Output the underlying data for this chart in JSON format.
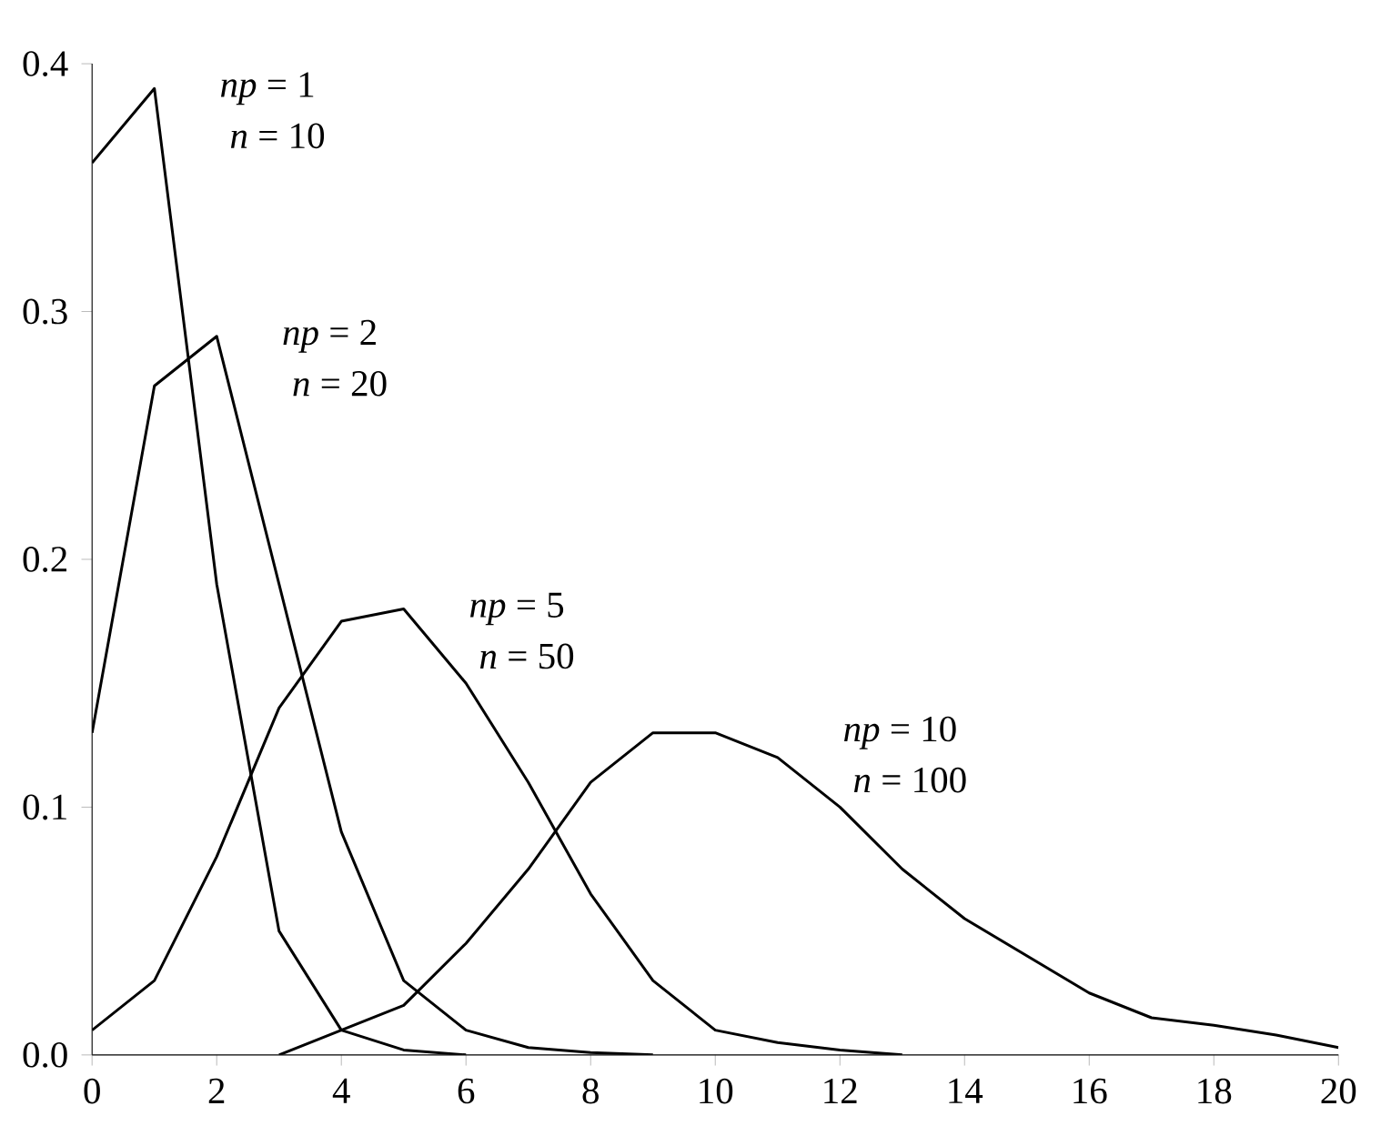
{
  "chart_data": {
    "type": "line",
    "xlim": [
      0,
      20
    ],
    "ylim": [
      0,
      0.4
    ],
    "xticks": [
      0,
      2,
      4,
      6,
      8,
      10,
      12,
      14,
      16,
      18,
      20
    ],
    "yticks": [
      {
        "value": 0,
        "label": "0.0"
      },
      0.1,
      0.2,
      0.3,
      0.4
    ],
    "grid": false,
    "marker": "none",
    "line_style": "solid",
    "series": [
      {
        "color": "#000000",
        "x": [
          0,
          1,
          2,
          3,
          4,
          5,
          6
        ],
        "values": [
          0.36,
          0.39,
          0.19,
          0.05,
          0.01,
          0.002,
          0.0
        ]
      },
      {
        "color": "#000000",
        "x": [
          0,
          1,
          2,
          3,
          4,
          5,
          6,
          7,
          8,
          9
        ],
        "values": [
          0.13,
          0.27,
          0.29,
          0.19,
          0.09,
          0.03,
          0.01,
          0.003,
          0.001,
          0.0
        ]
      },
      {
        "color": "#000000",
        "x": [
          0,
          1,
          2,
          3,
          4,
          5,
          6,
          7,
          8,
          9,
          10,
          11,
          12,
          13
        ],
        "values": [
          0.01,
          0.03,
          0.08,
          0.14,
          0.175,
          0.18,
          0.15,
          0.11,
          0.065,
          0.03,
          0.01,
          0.005,
          0.002,
          0.0
        ]
      },
      {
        "color": "#000000",
        "x": [
          3,
          4,
          5,
          6,
          7,
          8,
          9,
          10,
          11,
          12,
          13,
          14,
          15,
          16,
          17,
          18,
          19,
          20
        ],
        "values": [
          0.0,
          0.01,
          0.02,
          0.045,
          0.075,
          0.11,
          0.13,
          0.13,
          0.12,
          0.1,
          0.075,
          0.055,
          0.04,
          0.025,
          0.015,
          0.012,
          0.008,
          0.003
        ]
      }
    ],
    "annotations": [
      "*np* = 1",
      "*n* = 10",
      "*np* = 2",
      "*n* = 20",
      "*np* = 5",
      "*n* = 50",
      "*np* = 10",
      "*n* = 100"
    ]
  }
}
